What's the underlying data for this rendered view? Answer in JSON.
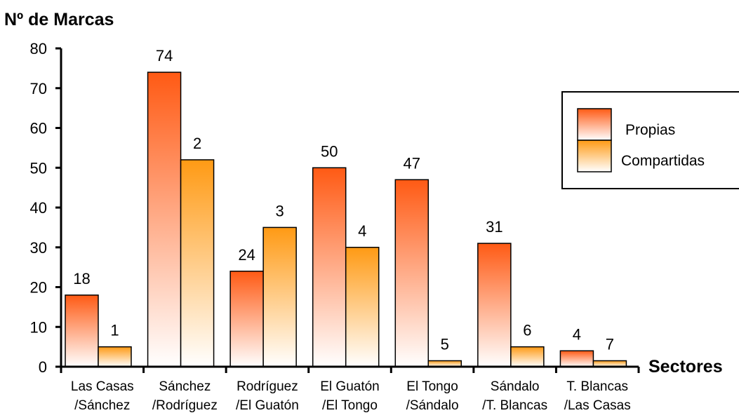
{
  "chart_data": {
    "type": "bar",
    "ylabel": "Nº de Marcas",
    "xlabel": "Sectores",
    "ylim": [
      0,
      80
    ],
    "yticks": [
      0,
      10,
      20,
      30,
      40,
      50,
      60,
      70,
      80
    ],
    "categories": [
      [
        "Las Casas",
        "/Sánchez"
      ],
      [
        "Sánchez",
        "/Rodríguez"
      ],
      [
        "Rodríguez",
        "/El Guatón"
      ],
      [
        "El Guatón",
        "/El Tongo"
      ],
      [
        "El Tongo",
        "/Sándalo"
      ],
      [
        "Sándalo",
        "/T. Blancas"
      ],
      [
        "T. Blancas",
        "/Las Casas"
      ]
    ],
    "series": [
      {
        "name": "Propias",
        "values": [
          18,
          74,
          24,
          50,
          47,
          31,
          4
        ],
        "labels": [
          "18",
          "74",
          "24",
          "50",
          "47",
          "31",
          "4"
        ],
        "color": "#ff5a14"
      },
      {
        "name": "Compartidas",
        "values": [
          5,
          52,
          35,
          30,
          1.5,
          5,
          1.5
        ],
        "labels": [
          "1",
          "2",
          "3",
          "4",
          "5",
          "6",
          "7"
        ],
        "color": "#ff9a14"
      }
    ],
    "legend": "right"
  }
}
